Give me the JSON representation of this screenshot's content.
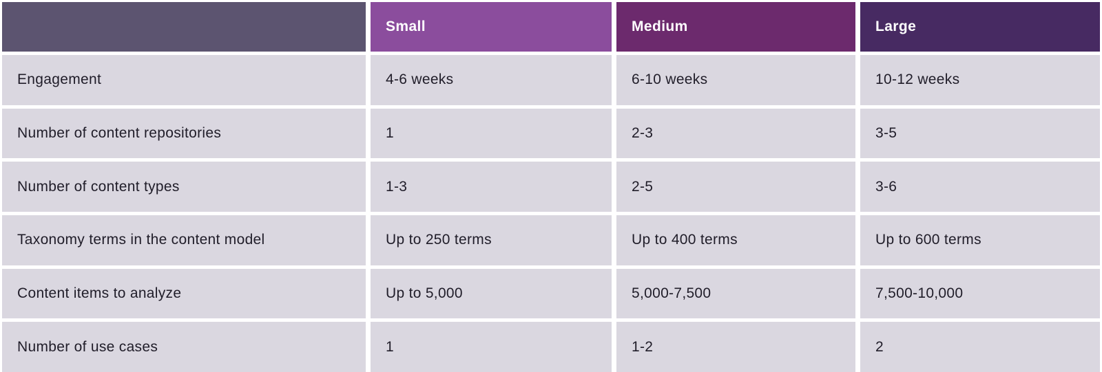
{
  "table": {
    "header": {
      "corner_label": "",
      "corner_bg": "#5c5470",
      "columns": [
        {
          "label": "Small",
          "bg": "#8b4d9d"
        },
        {
          "label": "Medium",
          "bg": "#6c2a6d"
        },
        {
          "label": "Large",
          "bg": "#472a62"
        }
      ]
    },
    "rows": [
      {
        "label": "Engagement",
        "values": [
          "4-6 weeks",
          "6-10 weeks",
          "10-12 weeks"
        ]
      },
      {
        "label": "Number of content repositories",
        "values": [
          "1",
          "2-3",
          "3-5"
        ]
      },
      {
        "label": "Number of content types",
        "values": [
          "1-3",
          "2-5",
          "3-6"
        ]
      },
      {
        "label": "Taxonomy terms in the content model",
        "values": [
          "Up to 250 terms",
          "Up to 400 terms",
          "Up to 600 terms"
        ]
      },
      {
        "label": "Content items to analyze",
        "values": [
          "Up to 5,000",
          "5,000-7,500",
          "7,500-10,000"
        ]
      },
      {
        "label": "Number of use cases",
        "values": [
          "1",
          "1-2",
          "2"
        ]
      }
    ],
    "colors": {
      "row_bg": "#dad7e0",
      "text": "#201d29",
      "header_text": "#ffffff",
      "gap": "#ffffff"
    }
  },
  "chart_data": {
    "type": "table",
    "columns": [
      "",
      "Small",
      "Medium",
      "Large"
    ],
    "rows": [
      [
        "Engagement",
        "4-6 weeks",
        "6-10 weeks",
        "10-12 weeks"
      ],
      [
        "Number of content repositories",
        "1",
        "2-3",
        "3-5"
      ],
      [
        "Number of content types",
        "1-3",
        "2-5",
        "3-6"
      ],
      [
        "Taxonomy terms in the content model",
        "Up to 250 terms",
        "Up to 400 terms",
        "Up to 600 terms"
      ],
      [
        "Content items to analyze",
        "Up to 5,000",
        "5,000-7,500",
        "7,500-10,000"
      ],
      [
        "Number of use cases",
        "1",
        "1-2",
        "2"
      ]
    ],
    "title": "",
    "legend_position": "none",
    "header_colors": [
      "#5c5470",
      "#8b4d9d",
      "#6c2a6d",
      "#472a62"
    ]
  }
}
